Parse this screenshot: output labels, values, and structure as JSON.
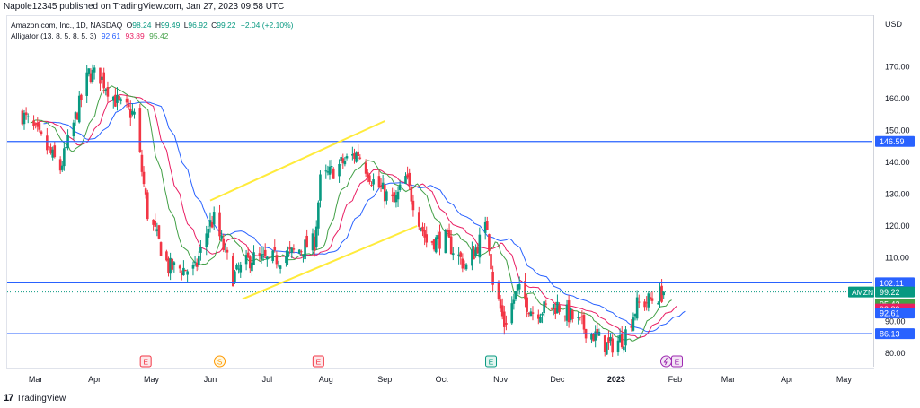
{
  "publisher": "Napole12345 published on TradingView.com, Jan 27, 2023 09:58 UTC",
  "legend": {
    "symbol": "Amazon.com, Inc., 1D, NASDAQ",
    "o_label": "O",
    "o": "98.24",
    "h_label": "H",
    "h": "99.49",
    "l_label": "L",
    "l": "96.92",
    "c_label": "C",
    "c": "99.22",
    "change": "+2.04 (+2.10%)",
    "indicator": "Alligator (13, 8, 5, 8, 5, 3)",
    "jaw": "92.61",
    "teeth": "93.89",
    "lips": "95.42"
  },
  "currency": "USD",
  "footer": {
    "logo": "17",
    "brand": "TradingView"
  },
  "colors": {
    "up": "#089981",
    "down": "#f23645",
    "jaw": "#2962ff",
    "teeth": "#e91e63",
    "lips": "#43a047",
    "hline": "#2962ff",
    "channel": "#ffeb3b",
    "ticker": "#089981"
  },
  "chart_data": {
    "type": "candlestick",
    "ylim": [
      76,
      186
    ],
    "y_ticks": [
      80,
      90,
      100,
      110,
      120,
      130,
      140,
      150,
      160,
      170
    ],
    "x_ticks": [
      "Mar",
      "Apr",
      "May",
      "Jun",
      "Jul",
      "Aug",
      "Sep",
      "Oct",
      "Nov",
      "Dec",
      "2023",
      "Feb",
      "Mar",
      "Apr",
      "May"
    ],
    "hlines": [
      146.59,
      102.11,
      86.13
    ],
    "price_labels": [
      {
        "text": "146.59",
        "value": 146.59,
        "kind": "hline"
      },
      {
        "text": "102.11",
        "value": 102.11,
        "kind": "hline"
      },
      {
        "text": "99.22",
        "value": 99.22,
        "kind": "last",
        "ticker": "AMZN"
      },
      {
        "text": "95.42",
        "value": 95.42,
        "kind": "lips"
      },
      {
        "text": "93.89",
        "value": 93.89,
        "kind": "teeth"
      },
      {
        "text": "92.61",
        "value": 92.61,
        "kind": "jaw"
      },
      {
        "text": "86.13",
        "value": 86.13,
        "kind": "hline"
      }
    ],
    "channel": {
      "upper": [
        [
          "2022-06-01",
          128
        ],
        [
          "2022-09-01",
          153
        ]
      ],
      "lower": [
        [
          "2022-06-18",
          97
        ],
        [
          "2022-09-18",
          120
        ]
      ]
    },
    "events": [
      {
        "date": "2022-04-28",
        "label": "E",
        "kind": "earnings"
      },
      {
        "date": "2022-06-06",
        "label": "S",
        "kind": "split"
      },
      {
        "date": "2022-07-28",
        "label": "E",
        "kind": "earnings"
      },
      {
        "date": "2022-10-27",
        "label": "E",
        "kind": "earnings-past"
      },
      {
        "date": "2023-02-02",
        "label": "E",
        "kind": "earnings-upcoming"
      }
    ],
    "anchors": [
      [
        "2022-02-22",
        155
      ],
      [
        "2022-03-04",
        147
      ],
      [
        "2022-03-14",
        138
      ],
      [
        "2022-03-29",
        168
      ],
      [
        "2022-04-04",
        167
      ],
      [
        "2022-04-14",
        158
      ],
      [
        "2022-04-22",
        155
      ],
      [
        "2022-04-29",
        124
      ],
      [
        "2022-05-10",
        107
      ],
      [
        "2022-05-24",
        106
      ],
      [
        "2022-05-31",
        120
      ],
      [
        "2022-06-03",
        122
      ],
      [
        "2022-06-13",
        104
      ],
      [
        "2022-06-23",
        110
      ],
      [
        "2022-07-01",
        109
      ],
      [
        "2022-07-13",
        111
      ],
      [
        "2022-07-26",
        115
      ],
      [
        "2022-07-29",
        134
      ],
      [
        "2022-08-10",
        140
      ],
      [
        "2022-08-18",
        143
      ],
      [
        "2022-08-26",
        134
      ],
      [
        "2022-09-06",
        127
      ],
      [
        "2022-09-12",
        135
      ],
      [
        "2022-09-23",
        115
      ],
      [
        "2022-10-03",
        116
      ],
      [
        "2022-10-14",
        107
      ],
      [
        "2022-10-25",
        120
      ],
      [
        "2022-10-28",
        103
      ],
      [
        "2022-11-03",
        89
      ],
      [
        "2022-11-10",
        100
      ],
      [
        "2022-11-18",
        93
      ],
      [
        "2022-12-01",
        95
      ],
      [
        "2022-12-15",
        88
      ],
      [
        "2022-12-28",
        82
      ],
      [
        "2023-01-05",
        85
      ],
      [
        "2023-01-12",
        95
      ],
      [
        "2023-01-20",
        97
      ],
      [
        "2023-01-26",
        99
      ]
    ],
    "last_candle": {
      "date": "2023-01-26",
      "o": 98.24,
      "h": 99.49,
      "l": 96.92,
      "c": 99.22
    }
  }
}
